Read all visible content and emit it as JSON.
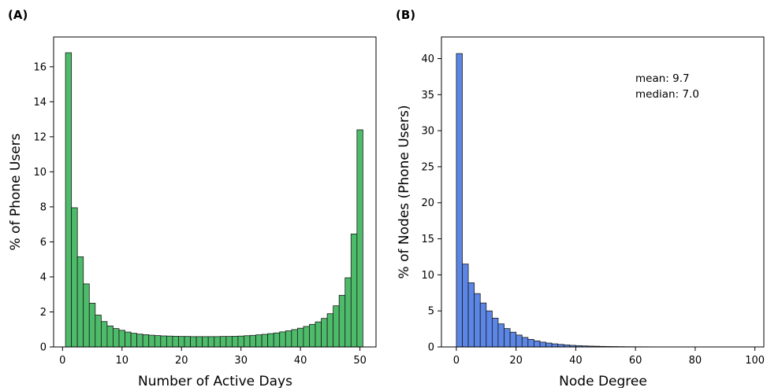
{
  "chart_data": [
    {
      "panel_label": "(A)",
      "type": "bar",
      "title": "",
      "xlabel": "Number of Active Days",
      "ylabel": "% of Phone Users",
      "xlim": [
        -1.5,
        52.7
      ],
      "ylim": [
        0,
        17.7
      ],
      "xticks": [
        0,
        10,
        20,
        30,
        40,
        50
      ],
      "yticks": [
        0,
        2,
        4,
        6,
        8,
        10,
        12,
        14,
        16
      ],
      "bar_color": "#4dbb6a",
      "edge_color": "#1a1a1a",
      "grid": false,
      "x": [
        1,
        2,
        3,
        4,
        5,
        6,
        7,
        8,
        9,
        10,
        11,
        12,
        13,
        14,
        15,
        16,
        17,
        18,
        19,
        20,
        21,
        22,
        23,
        24,
        25,
        26,
        27,
        28,
        29,
        30,
        31,
        32,
        33,
        34,
        35,
        36,
        37,
        38,
        39,
        40,
        41,
        42,
        43,
        44,
        45,
        46,
        47,
        48,
        49,
        50
      ],
      "values": [
        16.8,
        7.95,
        5.15,
        3.6,
        2.5,
        1.82,
        1.45,
        1.2,
        1.05,
        0.95,
        0.85,
        0.78,
        0.73,
        0.7,
        0.67,
        0.65,
        0.63,
        0.62,
        0.61,
        0.6,
        0.6,
        0.59,
        0.59,
        0.59,
        0.59,
        0.59,
        0.6,
        0.6,
        0.61,
        0.62,
        0.64,
        0.66,
        0.69,
        0.72,
        0.76,
        0.8,
        0.86,
        0.92,
        0.99,
        1.07,
        1.17,
        1.29,
        1.43,
        1.63,
        1.9,
        2.35,
        2.95,
        3.95,
        6.45,
        12.4
      ]
    },
    {
      "panel_label": "(B)",
      "type": "bar",
      "title": "",
      "xlabel": "Node Degree",
      "ylabel": "% of Nodes (Phone Users)",
      "xlim": [
        -5,
        103
      ],
      "ylim": [
        0,
        43
      ],
      "xticks": [
        0,
        20,
        40,
        60,
        80,
        100
      ],
      "yticks": [
        0,
        5,
        10,
        15,
        20,
        25,
        30,
        35,
        40
      ],
      "bar_color": "#5b86e5",
      "edge_color": "#1a1a1a",
      "grid": false,
      "bin_width": 2,
      "bin_starts": [
        0,
        2,
        4,
        6,
        8,
        10,
        12,
        14,
        16,
        18,
        20,
        22,
        24,
        26,
        28,
        30,
        32,
        34,
        36,
        38,
        40,
        42,
        44,
        46,
        48,
        50,
        52,
        54,
        56,
        58,
        60,
        62,
        64,
        66,
        68,
        70,
        72,
        74,
        76,
        78,
        80,
        82,
        84,
        86,
        88,
        90,
        92,
        94,
        96,
        98
      ],
      "values": [
        40.7,
        11.5,
        8.9,
        7.4,
        6.1,
        5.0,
        4.0,
        3.2,
        2.55,
        2.05,
        1.65,
        1.32,
        1.05,
        0.84,
        0.67,
        0.54,
        0.43,
        0.35,
        0.28,
        0.22,
        0.18,
        0.145,
        0.115,
        0.095,
        0.075,
        0.06,
        0.05,
        0.04,
        0.032,
        0.026,
        0.021,
        0.017,
        0.014,
        0.011,
        0.009,
        0.007,
        0.006,
        0.005,
        0.004,
        0.003,
        0.003,
        0.002,
        0.002,
        0.002,
        0.001,
        0.001,
        0.001,
        0.001,
        0.001,
        0.001
      ],
      "annotations": {
        "mean": "mean: 9.7",
        "median": "median: 7.0"
      }
    }
  ]
}
